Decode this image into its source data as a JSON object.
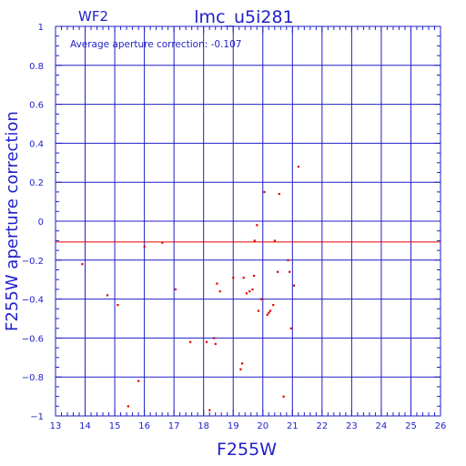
{
  "colors": {
    "axis": "#1f1fc8",
    "data": "#e00000",
    "reference_line": "#e00000",
    "background": "#ffffff"
  },
  "chart_data": {
    "type": "scatter",
    "panel_label": "WF2",
    "title": "lmc_u5i281",
    "annotation": "Average aperture correction: -0.107",
    "xlabel": "F255W",
    "ylabel": "F255W aperture correction",
    "xlim": [
      13,
      26
    ],
    "ylim": [
      -1,
      1
    ],
    "x_ticks": [
      13,
      14,
      15,
      16,
      17,
      18,
      19,
      20,
      21,
      22,
      23,
      24,
      25,
      26
    ],
    "y_ticks": [
      1,
      0.8,
      0.6,
      0.4,
      0.2,
      0,
      -0.2,
      -0.4,
      -0.6,
      -0.8,
      -1
    ],
    "y_tick_labels": [
      "1",
      "0.8",
      "0.6",
      "0.4",
      "0.2",
      "0",
      "−0.2",
      "−0.4",
      "−0.6",
      "−0.8",
      "−1"
    ],
    "grid": true,
    "reference_line_y": -0.107,
    "points": [
      {
        "x": 13.9,
        "y": -0.22
      },
      {
        "x": 14.75,
        "y": -0.38
      },
      {
        "x": 15.1,
        "y": -0.43
      },
      {
        "x": 15.45,
        "y": -0.95
      },
      {
        "x": 15.8,
        "y": -0.82
      },
      {
        "x": 16.0,
        "y": -0.13
      },
      {
        "x": 16.6,
        "y": -0.11
      },
      {
        "x": 17.05,
        "y": -0.35
      },
      {
        "x": 17.55,
        "y": -0.62
      },
      {
        "x": 18.1,
        "y": -0.62
      },
      {
        "x": 18.2,
        "y": -0.97
      },
      {
        "x": 18.35,
        "y": -0.6
      },
      {
        "x": 18.4,
        "y": -0.63
      },
      {
        "x": 18.45,
        "y": -0.32
      },
      {
        "x": 18.55,
        "y": -0.36
      },
      {
        "x": 19.0,
        "y": -0.29
      },
      {
        "x": 19.25,
        "y": -0.76
      },
      {
        "x": 19.3,
        "y": -0.73
      },
      {
        "x": 19.35,
        "y": -0.29
      },
      {
        "x": 19.45,
        "y": -0.37
      },
      {
        "x": 19.55,
        "y": -0.36
      },
      {
        "x": 19.65,
        "y": -0.35
      },
      {
        "x": 19.7,
        "y": -0.28
      },
      {
        "x": 19.72,
        "y": -0.1
      },
      {
        "x": 19.8,
        "y": -0.02
      },
      {
        "x": 19.85,
        "y": -0.46
      },
      {
        "x": 19.95,
        "y": -0.4
      },
      {
        "x": 20.05,
        "y": 0.15
      },
      {
        "x": 20.15,
        "y": -0.48
      },
      {
        "x": 20.2,
        "y": -0.47
      },
      {
        "x": 20.25,
        "y": -0.46
      },
      {
        "x": 20.35,
        "y": -0.43
      },
      {
        "x": 20.4,
        "y": -0.1
      },
      {
        "x": 20.5,
        "y": -0.26
      },
      {
        "x": 20.55,
        "y": 0.14
      },
      {
        "x": 20.7,
        "y": -0.9
      },
      {
        "x": 20.85,
        "y": -0.2
      },
      {
        "x": 20.9,
        "y": -0.26
      },
      {
        "x": 20.95,
        "y": -0.55
      },
      {
        "x": 21.05,
        "y": -0.33
      },
      {
        "x": 21.2,
        "y": 0.28
      }
    ]
  }
}
